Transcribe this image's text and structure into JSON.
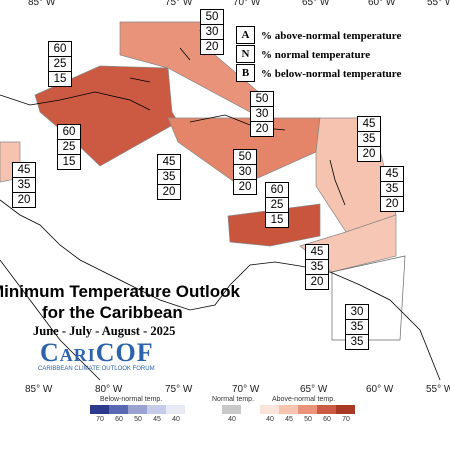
{
  "longitude_labels_top": [
    "85° W",
    "75° W",
    "70° W",
    "65° W",
    "60° W",
    "55° W"
  ],
  "longitude_labels_bottom": [
    "85° W",
    "80° W",
    "75° W",
    "70° W",
    "65° W",
    "60° W",
    "55° W"
  ],
  "legend": [
    {
      "key": "A",
      "text": "% above-normal temperature"
    },
    {
      "key": "N",
      "text": "% normal temperature"
    },
    {
      "key": "B",
      "text": "% below-normal temperature"
    }
  ],
  "title": {
    "line1": "Minimum Temperature Outlook",
    "line2": "for the Caribbean",
    "period": "June - July - August - 2025",
    "logo": "CariCOF",
    "logo_subtitle": "CARIBBEAN CLIMATE OUTLOOK FORUM"
  },
  "forecast_boxes": [
    {
      "above": 50,
      "normal": 30,
      "below": 20
    },
    {
      "above": 60,
      "normal": 25,
      "below": 15
    },
    {
      "above": 50,
      "normal": 30,
      "below": 20
    },
    {
      "above": 60,
      "normal": 25,
      "below": 15
    },
    {
      "above": 45,
      "normal": 35,
      "below": 20
    },
    {
      "above": 45,
      "normal": 35,
      "below": 20
    },
    {
      "above": 45,
      "normal": 35,
      "below": 20
    },
    {
      "above": 50,
      "normal": 30,
      "below": 20
    },
    {
      "above": 45,
      "normal": 35,
      "below": 20
    },
    {
      "above": 60,
      "normal": 25,
      "below": 15
    },
    {
      "above": 45,
      "normal": 35,
      "below": 20
    },
    {
      "above": 30,
      "normal": 35,
      "below": 35
    }
  ],
  "colorbar": {
    "below_label": "Below-normal temp.",
    "below_ticks": [
      70,
      60,
      50,
      45,
      40
    ],
    "normal_label": "Normal temp.",
    "normal_ticks": [
      40
    ],
    "above_label": "Above-normal temp.",
    "above_ticks": [
      40,
      45,
      50,
      60,
      70
    ]
  }
}
